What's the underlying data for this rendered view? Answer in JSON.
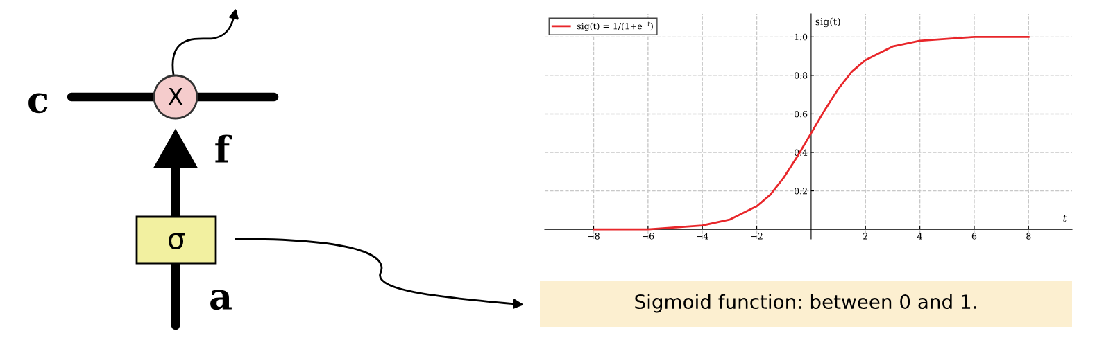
{
  "chart_data": [
    {
      "type": "other",
      "annotations": [
        "c",
        "f",
        "a",
        "σ",
        "X"
      ]
    },
    {
      "type": "line",
      "xlabel": "t",
      "ylabel": "sig(t)",
      "x": [
        -8,
        -7,
        -6,
        -5,
        -4,
        -3,
        -2,
        -1.5,
        -1,
        -0.5,
        0,
        0.5,
        1,
        1.5,
        2,
        3,
        4,
        5,
        6,
        7,
        8
      ],
      "series": [
        {
          "name": "sig(t) = 1/(1+e$^{−t}$)",
          "color": "#e8262a",
          "values": [
            0,
            0,
            0,
            0.01,
            0.02,
            0.05,
            0.12,
            0.18,
            0.27,
            0.38,
            0.5,
            0.62,
            0.73,
            0.82,
            0.88,
            0.95,
            0.98,
            0.99,
            1,
            1,
            1
          ]
        }
      ],
      "xlim": [
        -9.8,
        9.6
      ],
      "ylim": [
        -0.05,
        1.12
      ],
      "xticks": [
        {
          "value": -8,
          "label": "−8"
        },
        {
          "value": -6,
          "label": "−6"
        },
        {
          "value": -4,
          "label": "−4"
        },
        {
          "value": -2,
          "label": "−2"
        },
        2,
        4,
        6,
        8
      ],
      "yticks": [
        0.2,
        0.4,
        0.6,
        0.8,
        {
          "value": 1,
          "label": "1.0"
        }
      ],
      "grid": true,
      "legend": "top left",
      "marker": "none",
      "line_style": "solid",
      "annotations": [
        "Sigmoid function: between 0 and 1."
      ]
    }
  ]
}
